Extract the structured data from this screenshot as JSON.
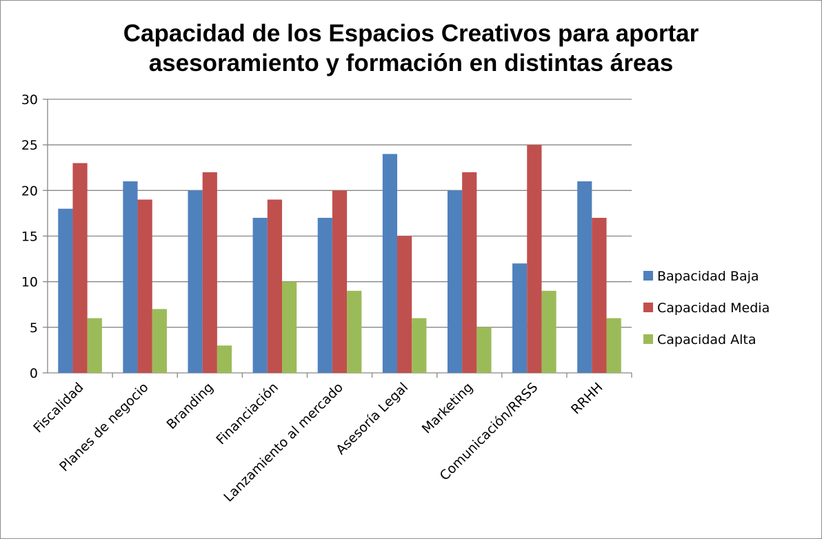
{
  "chart_data": {
    "type": "bar",
    "title_lines": [
      "Capacidad de los Espacios Creativos para aportar",
      "asesoramiento y formación en distintas áreas"
    ],
    "categories": [
      "Fiscalidad",
      "Planes de negocio",
      "Branding",
      "Financiación",
      "Lanzamiento al mercado",
      "Asesoría Legal",
      "Marketing",
      "Comunicación/RRSS",
      "RRHH"
    ],
    "series": [
      {
        "name": "Bapacidad Baja",
        "color": "#4f81bd",
        "values": [
          18,
          21,
          20,
          17,
          17,
          24,
          20,
          12,
          21
        ]
      },
      {
        "name": "Capacidad Media",
        "color": "#c0504d",
        "values": [
          23,
          19,
          22,
          19,
          20,
          15,
          22,
          25,
          17
        ]
      },
      {
        "name": "Capacidad Alta",
        "color": "#9bbb59",
        "values": [
          6,
          7,
          3,
          10,
          9,
          6,
          5,
          9,
          6
        ]
      }
    ],
    "ylim": [
      0,
      30
    ],
    "yticks": [
      0,
      5,
      10,
      15,
      20,
      25,
      30
    ],
    "grid": true,
    "legend_position": "right"
  }
}
